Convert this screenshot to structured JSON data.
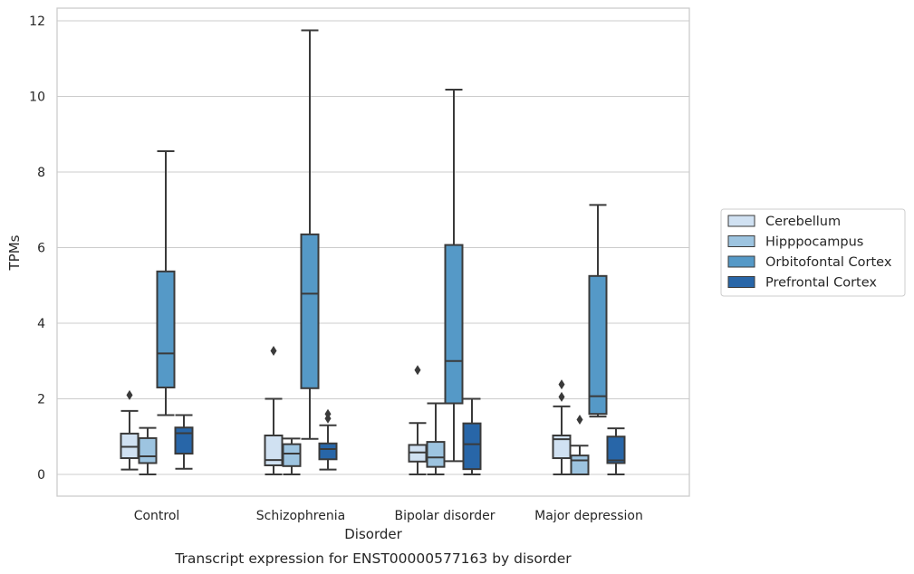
{
  "chart_data": {
    "type": "box",
    "caption": "Transcript expression for ENST00000577163 by disorder",
    "xlabel": "Disorder",
    "ylabel": "TPMs",
    "ylim": [
      -0.55,
      12.35
    ],
    "yticks": [
      0,
      2,
      4,
      6,
      8,
      10,
      12
    ],
    "grid": true,
    "legend_position": "right",
    "categories": [
      "Control",
      "Schizophrenia",
      "Bipolar disorder",
      "Major depression"
    ],
    "series": [
      {
        "name": "Cerebellum",
        "color": "#d0e1f2",
        "boxes": [
          {
            "whisker_low": 0.13,
            "q1": 0.43,
            "median": 0.73,
            "q3": 1.08,
            "whisker_high": 1.68,
            "outliers": [
              2.1
            ]
          },
          {
            "whisker_low": 0.0,
            "q1": 0.24,
            "median": 0.38,
            "q3": 1.03,
            "whisker_high": 2.0,
            "outliers": [
              3.27
            ]
          },
          {
            "whisker_low": 0.0,
            "q1": 0.34,
            "median": 0.58,
            "q3": 0.78,
            "whisker_high": 1.36,
            "outliers": [
              2.76
            ]
          },
          {
            "whisker_low": 0.0,
            "q1": 0.43,
            "median": 0.93,
            "q3": 1.03,
            "whisker_high": 1.8,
            "outliers": [
              2.05,
              2.38
            ]
          }
        ]
      },
      {
        "name": "Hipppocampus",
        "color": "#9dc4e0",
        "boxes": [
          {
            "whisker_low": 0.0,
            "q1": 0.3,
            "median": 0.48,
            "q3": 0.96,
            "whisker_high": 1.23,
            "outliers": []
          },
          {
            "whisker_low": 0.0,
            "q1": 0.22,
            "median": 0.55,
            "q3": 0.8,
            "whisker_high": 0.95,
            "outliers": []
          },
          {
            "whisker_low": 0.0,
            "q1": 0.2,
            "median": 0.45,
            "q3": 0.86,
            "whisker_high": 1.88,
            "outliers": []
          },
          {
            "whisker_low": 0.0,
            "q1": 0.0,
            "median": 0.37,
            "q3": 0.5,
            "whisker_high": 0.76,
            "outliers": [
              1.45
            ]
          }
        ]
      },
      {
        "name": "Orbitofontal Cortex",
        "color": "#5599c7",
        "boxes": [
          {
            "whisker_low": 1.57,
            "q1": 2.3,
            "median": 3.2,
            "q3": 5.37,
            "whisker_high": 8.55,
            "outliers": []
          },
          {
            "whisker_low": 0.94,
            "q1": 2.28,
            "median": 4.78,
            "q3": 6.35,
            "whisker_high": 11.75,
            "outliers": []
          },
          {
            "whisker_low": 0.35,
            "q1": 1.88,
            "median": 3.0,
            "q3": 6.07,
            "whisker_high": 10.18,
            "outliers": []
          },
          {
            "whisker_low": 1.53,
            "q1": 1.6,
            "median": 2.07,
            "q3": 5.25,
            "whisker_high": 7.13,
            "outliers": []
          }
        ]
      },
      {
        "name": "Prefrontal Cortex",
        "color": "#2866a8",
        "boxes": [
          {
            "whisker_low": 0.15,
            "q1": 0.55,
            "median": 1.09,
            "q3": 1.24,
            "whisker_high": 1.57,
            "outliers": []
          },
          {
            "whisker_low": 0.13,
            "q1": 0.4,
            "median": 0.67,
            "q3": 0.82,
            "whisker_high": 1.3,
            "outliers": [
              1.48,
              1.6
            ]
          },
          {
            "whisker_low": 0.0,
            "q1": 0.14,
            "median": 0.8,
            "q3": 1.35,
            "whisker_high": 2.0,
            "outliers": []
          },
          {
            "whisker_low": 0.0,
            "q1": 0.3,
            "median": 0.37,
            "q3": 1.0,
            "whisker_high": 1.22,
            "outliers": []
          }
        ]
      }
    ]
  }
}
